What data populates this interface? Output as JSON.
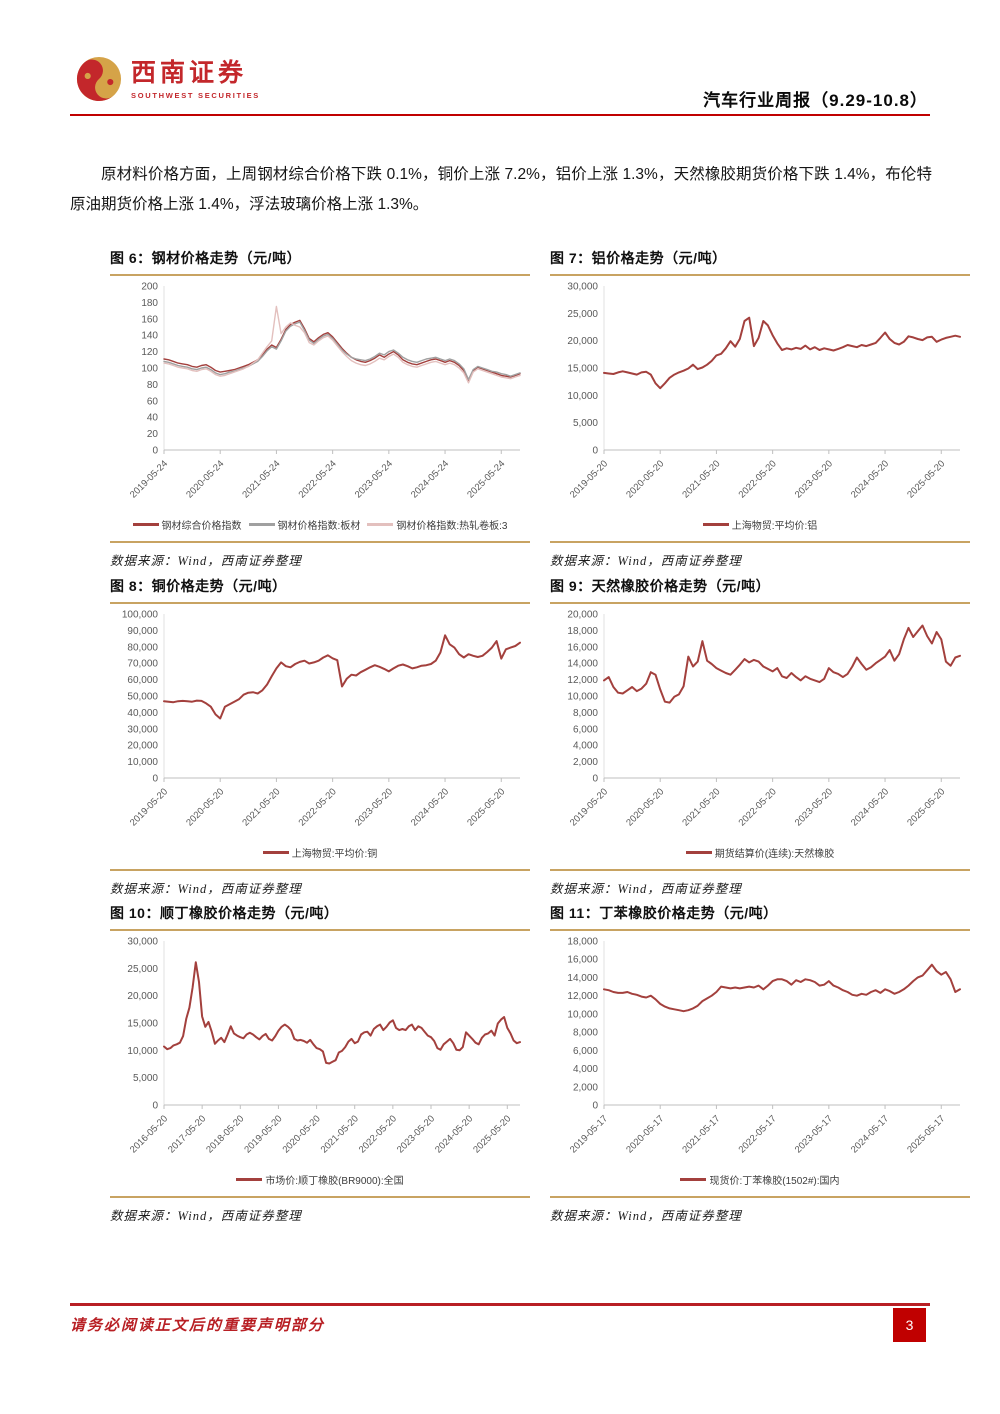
{
  "header": {
    "brand_cn": "西南证券",
    "brand_en": "SOUTHWEST SECURITIES",
    "report_title": "汽车行业周报（9.29-10.8）"
  },
  "paragraph": "原材料价格方面，上周钢材综合价格下跌 0.1%，铜价上涨 7.2%，铝价上涨 1.3%，天然橡胶期货价格下跌 1.4%，布伦特原油期货价格上涨 1.4%，浮法玻璃价格上涨 1.3%。",
  "source_note": "数据来源：Wind，西南证券整理",
  "footer": {
    "disclaimer": "请务必阅读正文后的重要声明部分",
    "page_number": "3"
  },
  "colors": {
    "line_red": "#a3403d",
    "line_gray": "#a0a0a0",
    "line_pink": "#e3c0be",
    "rule_tan": "#c8a362",
    "accent_red": "#c00000",
    "logo_red": "#c3272b",
    "logo_gold": "#d5a348"
  },
  "chart_data": [
    {
      "id": "fig6",
      "type": "line",
      "title": "图 6：钢材价格走势（元/吨）",
      "ylim": [
        0,
        200
      ],
      "yticks": [
        0,
        20,
        40,
        60,
        80,
        100,
        120,
        140,
        160,
        180,
        200
      ],
      "x_labels": [
        "2019-05-24",
        "2020-05-24",
        "2021-05-24",
        "2022-05-24",
        "2023-05-24",
        "2024-05-24",
        "2025-05-24"
      ],
      "x_every": 12,
      "series": [
        {
          "name": "钢材综合价格指数",
          "color": "line_red",
          "width": 1.4,
          "values": [
            111,
            110,
            108,
            106,
            105,
            104,
            102,
            101,
            103,
            104,
            101,
            97,
            95,
            96,
            97,
            98,
            100,
            102,
            104,
            107,
            110,
            116,
            123,
            128,
            125,
            135,
            147,
            153,
            156,
            158,
            148,
            136,
            132,
            137,
            141,
            143,
            138,
            131,
            124,
            118,
            113,
            110,
            108,
            107,
            109,
            112,
            116,
            113,
            117,
            120,
            116,
            110,
            107,
            105,
            104,
            106,
            108,
            110,
            111,
            109,
            107,
            109,
            107,
            103,
            97,
            84,
            97,
            101,
            99,
            97,
            95,
            93,
            91,
            90,
            89,
            91,
            93
          ]
        },
        {
          "name": "钢材价格指数:板材",
          "color": "line_gray",
          "width": 1.4,
          "values": [
            108,
            107,
            105,
            103,
            102,
            101,
            99,
            98,
            100,
            101,
            98,
            94,
            92,
            93,
            95,
            96,
            98,
            100,
            102,
            105,
            108,
            114,
            121,
            126,
            123,
            133,
            145,
            151,
            154,
            156,
            146,
            134,
            130,
            135,
            139,
            141,
            136,
            129,
            122,
            117,
            113,
            111,
            110,
            109,
            111,
            114,
            118,
            116,
            120,
            122,
            118,
            113,
            110,
            108,
            107,
            109,
            111,
            112,
            113,
            111,
            109,
            111,
            109,
            105,
            99,
            86,
            98,
            102,
            100,
            98,
            96,
            95,
            93,
            92,
            90,
            92,
            94
          ]
        },
        {
          "name": "钢材价格指数:热轧卷板:3",
          "color": "line_pink",
          "width": 1.4,
          "values": [
            106,
            105,
            103,
            101,
            100,
            99,
            97,
            96,
            98,
            99,
            96,
            92,
            90,
            91,
            93,
            95,
            97,
            99,
            102,
            106,
            110,
            118,
            126,
            133,
            175,
            142,
            150,
            155,
            152,
            150,
            143,
            131,
            128,
            133,
            137,
            139,
            134,
            127,
            120,
            114,
            109,
            106,
            104,
            103,
            105,
            108,
            112,
            110,
            114,
            117,
            113,
            107,
            104,
            102,
            101,
            103,
            105,
            107,
            108,
            106,
            104,
            106,
            104,
            100,
            94,
            82,
            95,
            99,
            97,
            95,
            93,
            91,
            89,
            88,
            87,
            89,
            91
          ]
        }
      ]
    },
    {
      "id": "fig7",
      "type": "line",
      "title": "图 7：铝价格走势（元/吨）",
      "ylim": [
        0,
        30000
      ],
      "yticks": [
        0,
        5000,
        10000,
        15000,
        20000,
        25000,
        30000
      ],
      "x_labels": [
        "2019-05-20",
        "2020-05-20",
        "2021-05-20",
        "2022-05-20",
        "2023-05-20",
        "2024-05-20",
        "2025-05-20"
      ],
      "x_every": 12,
      "series": [
        {
          "name": "上海物贸:平均价:铝",
          "color": "line_red",
          "width": 2,
          "values": [
            14100,
            14000,
            13900,
            14200,
            14400,
            14200,
            14000,
            13800,
            14200,
            14300,
            13800,
            12200,
            11300,
            12200,
            13200,
            13800,
            14200,
            14500,
            14900,
            15600,
            14800,
            15100,
            15600,
            16300,
            17300,
            17600,
            18600,
            19900,
            18900,
            20300,
            23600,
            24200,
            19000,
            20500,
            23600,
            22800,
            21000,
            19500,
            18300,
            18600,
            18400,
            18700,
            18500,
            19100,
            18400,
            18800,
            18300,
            18600,
            18400,
            18200,
            18500,
            18800,
            19200,
            19000,
            18800,
            19200,
            19000,
            19300,
            19600,
            20500,
            21500,
            20300,
            19600,
            19300,
            19800,
            20800,
            20600,
            20300,
            20100,
            20600,
            20700,
            19800,
            20200,
            20500,
            20700,
            20900,
            20700
          ]
        }
      ]
    },
    {
      "id": "fig8",
      "type": "line",
      "title": "图 8：铜价格走势（元/吨）",
      "ylim": [
        0,
        100000
      ],
      "yticks": [
        0,
        10000,
        20000,
        30000,
        40000,
        50000,
        60000,
        70000,
        80000,
        90000,
        100000
      ],
      "x_labels": [
        "2019-05-20",
        "2020-05-20",
        "2021-05-20",
        "2022-05-20",
        "2023-05-20",
        "2024-05-20",
        "2025-05-20"
      ],
      "x_every": 12,
      "series": [
        {
          "name": "上海物贸:平均价:铜",
          "color": "line_red",
          "width": 2,
          "values": [
            46800,
            46500,
            46200,
            46800,
            47000,
            46800,
            46500,
            47200,
            47000,
            45500,
            43500,
            38800,
            36300,
            43500,
            45000,
            46500,
            48000,
            50800,
            52000,
            52300,
            51500,
            53500,
            57000,
            62000,
            66800,
            70500,
            68200,
            67500,
            69500,
            70800,
            71500,
            69800,
            70500,
            71500,
            73500,
            74800,
            73000,
            71800,
            55800,
            60500,
            63000,
            62500,
            64500,
            66000,
            67500,
            68800,
            67800,
            66500,
            65000,
            66800,
            68500,
            69200,
            68200,
            66800,
            67500,
            68500,
            68800,
            69500,
            71500,
            76500,
            87000,
            81500,
            79500,
            75500,
            73500,
            75500,
            74500,
            73800,
            74500,
            76800,
            79500,
            83500,
            72800,
            78500,
            79500,
            80500,
            82500
          ]
        }
      ]
    },
    {
      "id": "fig9",
      "type": "line",
      "title": "图 9：天然橡胶价格走势（元/吨）",
      "ylim": [
        0,
        20000
      ],
      "yticks": [
        0,
        2000,
        4000,
        6000,
        8000,
        10000,
        12000,
        14000,
        16000,
        18000,
        20000
      ],
      "x_labels": [
        "2019-05-20",
        "2020-05-20",
        "2021-05-20",
        "2022-05-20",
        "2023-05-20",
        "2024-05-20",
        "2025-05-20"
      ],
      "x_every": 12,
      "series": [
        {
          "name": "期货结算价(连续):天然橡胶",
          "color": "line_red",
          "width": 2,
          "values": [
            11900,
            12300,
            11100,
            10400,
            10300,
            10700,
            11100,
            10600,
            10900,
            11500,
            12900,
            12600,
            10800,
            9300,
            9200,
            9900,
            10200,
            11200,
            14800,
            13600,
            14200,
            16700,
            14300,
            13900,
            13400,
            13100,
            12800,
            12600,
            13200,
            13800,
            14500,
            14100,
            14400,
            14200,
            13600,
            13300,
            13000,
            13400,
            12400,
            12200,
            12800,
            12300,
            11900,
            12400,
            12100,
            11900,
            11700,
            12100,
            13400,
            12900,
            12700,
            12300,
            12700,
            13600,
            14700,
            13900,
            13200,
            13500,
            14000,
            14400,
            14800,
            15600,
            14300,
            15100,
            16900,
            18300,
            17200,
            17900,
            18600,
            17300,
            16400,
            17800,
            16900,
            14200,
            13700,
            14700,
            14900
          ]
        }
      ]
    },
    {
      "id": "fig10",
      "type": "line",
      "title": "图 10：顺丁橡胶价格走势（元/吨）",
      "ylim": [
        0,
        30000
      ],
      "yticks": [
        0,
        5000,
        10000,
        15000,
        20000,
        25000,
        30000
      ],
      "x_labels": [
        "2016-05-20",
        "2017-05-20",
        "2018-05-20",
        "2019-05-20",
        "2020-05-20",
        "2021-05-20",
        "2022-05-20",
        "2023-05-20",
        "2024-05-20",
        "2025-05-20"
      ],
      "x_every": 12,
      "series": [
        {
          "name": "市场价:顺丁橡胶(BR9000):全国",
          "color": "line_red",
          "width": 2,
          "values": [
            10700,
            10200,
            10400,
            10900,
            11100,
            11400,
            12600,
            15800,
            17800,
            21500,
            26100,
            22500,
            16200,
            14300,
            15200,
            13400,
            11200,
            11800,
            12300,
            11500,
            12900,
            14400,
            13100,
            12700,
            12400,
            12200,
            12900,
            13200,
            12900,
            12400,
            12000,
            12600,
            13000,
            12100,
            11800,
            12600,
            13600,
            14300,
            14700,
            14300,
            13700,
            12100,
            11800,
            11900,
            11700,
            11400,
            11900,
            11100,
            10400,
            10200,
            9800,
            7700,
            7600,
            7900,
            8200,
            9600,
            9900,
            10600,
            11600,
            12100,
            11300,
            11600,
            12900,
            13300,
            13400,
            12700,
            13900,
            14400,
            14700,
            13700,
            14300,
            15100,
            15500,
            14100,
            13700,
            13900,
            13700,
            14400,
            14700,
            13700,
            14400,
            14100,
            13400,
            12700,
            12400,
            11700,
            10400,
            10100,
            11100,
            11600,
            12100,
            11300,
            10100,
            10000,
            10600,
            13300,
            12700,
            12100,
            11400,
            11100,
            12300,
            12900,
            13100,
            13600,
            12700,
            14900,
            15600,
            16100,
            14100,
            13100,
            11800,
            11300,
            11500
          ]
        }
      ]
    },
    {
      "id": "fig11",
      "type": "line",
      "title": "图 11：丁苯橡胶价格走势（元/吨）",
      "ylim": [
        0,
        18000
      ],
      "yticks": [
        0,
        2000,
        4000,
        6000,
        8000,
        10000,
        12000,
        14000,
        16000,
        18000
      ],
      "x_labels": [
        "2019-05-17",
        "2020-05-17",
        "2021-05-17",
        "2022-05-17",
        "2023-05-17",
        "2024-05-17",
        "2025-05-17"
      ],
      "x_every": 12,
      "series": [
        {
          "name": "现货价:丁苯橡胶(1502#):国内",
          "color": "line_red",
          "width": 2,
          "values": [
            12700,
            12600,
            12400,
            12300,
            12300,
            12400,
            12200,
            12100,
            11900,
            11800,
            12000,
            11600,
            11100,
            10800,
            10600,
            10500,
            10400,
            10300,
            10400,
            10600,
            10900,
            11400,
            11700,
            12000,
            12400,
            13000,
            12900,
            12800,
            12900,
            12800,
            12900,
            13000,
            12900,
            13100,
            12700,
            13100,
            13600,
            13800,
            13800,
            13600,
            13200,
            13700,
            13500,
            13800,
            13700,
            13500,
            13100,
            13200,
            13600,
            13100,
            12900,
            12600,
            12400,
            12100,
            12000,
            12200,
            12100,
            12400,
            12600,
            12300,
            12700,
            12500,
            12200,
            12400,
            12700,
            13100,
            13600,
            14000,
            14200,
            14800,
            15400,
            14700,
            14300,
            14600,
            13800,
            12400,
            12700
          ]
        }
      ]
    }
  ]
}
